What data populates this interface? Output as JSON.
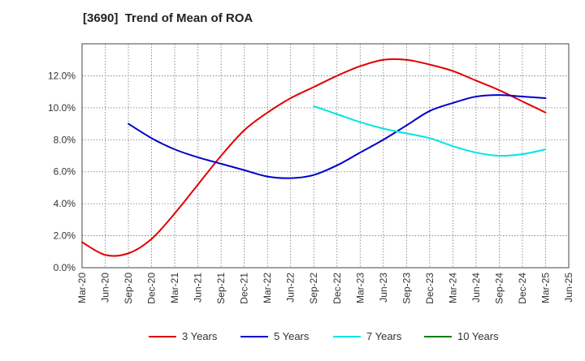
{
  "chart_data": {
    "type": "line",
    "title": "[3690]  Trend of Mean of ROA",
    "xlabel": "",
    "ylabel": "",
    "x": [
      "Mar-20",
      "Jun-20",
      "Sep-20",
      "Dec-20",
      "Mar-21",
      "Jun-21",
      "Sep-21",
      "Dec-21",
      "Mar-22",
      "Jun-22",
      "Sep-22",
      "Dec-22",
      "Mar-23",
      "Jun-23",
      "Sep-23",
      "Dec-23",
      "Mar-24",
      "Jun-24",
      "Sep-24",
      "Dec-24",
      "Mar-25",
      "Jun-25"
    ],
    "ylim": [
      0,
      0.14
    ],
    "yticks": [
      0,
      0.02,
      0.04,
      0.06,
      0.08,
      0.1,
      0.12
    ],
    "ytick_labels": [
      "0.0%",
      "2.0%",
      "4.0%",
      "6.0%",
      "8.0%",
      "10.0%",
      "12.0%"
    ],
    "grid": true,
    "legend_position": "bottom",
    "series": [
      {
        "name": "3 Years",
        "color": "#e00000",
        "values": [
          0.016,
          0.008,
          0.009,
          0.018,
          0.034,
          0.052,
          0.07,
          0.086,
          0.097,
          0.106,
          0.113,
          0.12,
          0.126,
          0.13,
          0.13,
          0.127,
          0.123,
          0.117,
          0.111,
          0.104,
          0.097,
          null
        ]
      },
      {
        "name": "5 Years",
        "color": "#0000cc",
        "values": [
          null,
          null,
          0.09,
          0.081,
          0.074,
          0.069,
          0.065,
          0.061,
          0.057,
          0.056,
          0.058,
          0.064,
          0.072,
          0.08,
          0.089,
          0.098,
          0.103,
          0.107,
          0.108,
          0.107,
          0.106,
          null
        ]
      },
      {
        "name": "7 Years",
        "color": "#00e5e5",
        "values": [
          null,
          null,
          null,
          null,
          null,
          null,
          null,
          null,
          null,
          null,
          0.101,
          0.096,
          0.091,
          0.087,
          0.084,
          0.081,
          0.076,
          0.072,
          0.07,
          0.071,
          0.074,
          null
        ]
      },
      {
        "name": "10 Years",
        "color": "#008000",
        "values": [
          null,
          null,
          null,
          null,
          null,
          null,
          null,
          null,
          null,
          null,
          null,
          null,
          null,
          null,
          null,
          null,
          null,
          null,
          null,
          null,
          null,
          null
        ]
      }
    ]
  }
}
